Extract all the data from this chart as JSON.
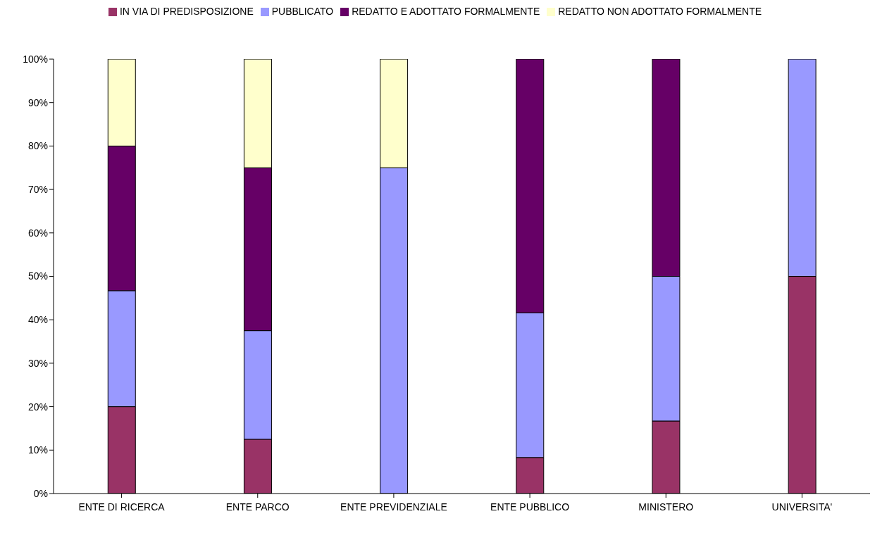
{
  "chart_data": {
    "type": "bar",
    "stacked": true,
    "categories": [
      "ENTE DI RICERCA",
      "ENTE PARCO",
      "ENTE PREVIDENZIALE",
      "ENTE PUBBLICO",
      "MINISTERO",
      "UNIVERSITA'"
    ],
    "series": [
      {
        "name": "IN VIA DI PREDISPOSIZIONE",
        "color": "#993366",
        "values": [
          20,
          12.5,
          0,
          8.3,
          16.7,
          50
        ]
      },
      {
        "name": "PUBBLICATO",
        "color": "#9999ff",
        "values": [
          26.7,
          25,
          75,
          33.3,
          33.3,
          50
        ]
      },
      {
        "name": "REDATTO E ADOTTATO FORMALMENTE",
        "color": "#660066",
        "values": [
          33.3,
          37.5,
          0,
          58.4,
          50,
          0
        ]
      },
      {
        "name": "REDATTO NON ADOTTATO FORMALMENTE",
        "color": "#ffffcc",
        "values": [
          20,
          25,
          25,
          0,
          0,
          0
        ]
      }
    ],
    "ylim": [
      0,
      100
    ],
    "yticks": [
      {
        "value": 0,
        "label": "0%"
      },
      {
        "value": 10,
        "label": "10%"
      },
      {
        "value": 20,
        "label": "20%"
      },
      {
        "value": 30,
        "label": "30%"
      },
      {
        "value": 40,
        "label": "40%"
      },
      {
        "value": 50,
        "label": "50%"
      },
      {
        "value": 60,
        "label": "60%"
      },
      {
        "value": 70,
        "label": "70%"
      },
      {
        "value": 80,
        "label": "80%"
      },
      {
        "value": 90,
        "label": "90%"
      },
      {
        "value": 100,
        "label": "100%"
      }
    ],
    "grid": false,
    "legend": "top"
  }
}
